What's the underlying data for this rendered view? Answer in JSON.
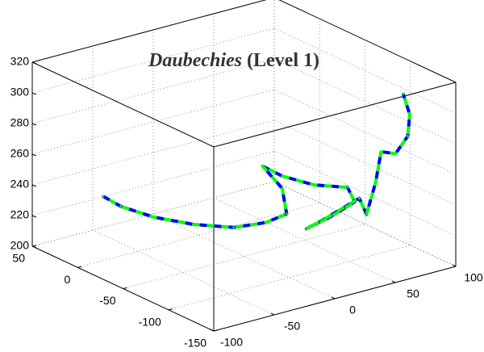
{
  "chart_data": {
    "type": "line3d",
    "title": [
      "Daubechies",
      "(Level 1)"
    ],
    "xlim": [
      -100,
      100
    ],
    "ylim": [
      -150,
      50
    ],
    "zlim": [
      200,
      320
    ],
    "xticks": [
      -100,
      -50,
      0,
      50,
      100
    ],
    "yticks": [
      -150,
      -100,
      -50,
      0,
      50
    ],
    "zticks": [
      200,
      220,
      240,
      260,
      280,
      300,
      320
    ],
    "grid": true,
    "series": [
      {
        "color": "#0000ff",
        "x": [
          -79,
          -69,
          -50,
          -27,
          -4,
          15,
          27,
          24,
          13,
          24,
          43,
          63,
          66,
          52,
          38,
          48,
          69,
          72,
          78,
          81,
          90,
          97,
          98,
          94
        ],
        "y": [
          0,
          -6,
          -17,
          -30,
          -44,
          -54,
          -61,
          -60,
          -53,
          -60,
          -70,
          -80,
          -84,
          -76,
          -68,
          -73,
          -85,
          -89,
          -91,
          -93,
          -97,
          -101,
          -102,
          -100
        ],
        "z": [
          242,
          235,
          227,
          221,
          218,
          220,
          225,
          242,
          257,
          250,
          243,
          240,
          231,
          222,
          215,
          220,
          233,
          223,
          243,
          263,
          261,
          272,
          286,
          300
        ]
      },
      {
        "color": "#00ff00",
        "x": [
          -79,
          -69,
          -50,
          -27,
          -4,
          15,
          27,
          24,
          13,
          24,
          43,
          63,
          66,
          52,
          38,
          48,
          69,
          72,
          78,
          81,
          90,
          97,
          98,
          94
        ],
        "y": [
          0,
          -6,
          -17,
          -30,
          -44,
          -54,
          -61,
          -60,
          -53,
          -60,
          -70,
          -80,
          -84,
          -76,
          -68,
          -73,
          -85,
          -89,
          -91,
          -93,
          -97,
          -101,
          -102,
          -100
        ],
        "z": [
          242,
          235,
          227,
          221,
          218,
          220,
          225,
          242,
          257,
          250,
          243,
          240,
          231,
          222,
          215,
          220,
          233,
          223,
          243,
          263,
          261,
          272,
          286,
          300
        ]
      }
    ]
  }
}
